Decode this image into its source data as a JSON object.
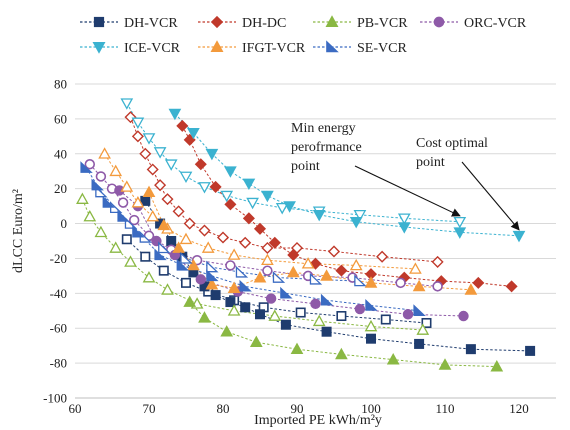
{
  "chart_data": {
    "type": "scatter",
    "xlabel": "Imported  PE kWh/m²y",
    "ylabel": "dLCC Euro/m²",
    "xlim": [
      60,
      125
    ],
    "ylim": [
      -100,
      80
    ],
    "x_ticks": [
      60,
      70,
      80,
      90,
      100,
      110,
      120
    ],
    "y_ticks": [
      80,
      60,
      40,
      20,
      0,
      -20,
      -40,
      -60,
      -80,
      -100
    ],
    "grid": "horizontal",
    "legend_position": "top",
    "annotations": [
      {
        "label": "Min energy\nperofrmance\npoint",
        "target": [
          112.0,
          1.0
        ]
      },
      {
        "label": "Cost optimal\npoint",
        "target": [
          120.0,
          -7.0
        ]
      }
    ],
    "series": [
      {
        "name": "DH-VCR",
        "color": "#1f3c6e",
        "marker": "square",
        "filled": [
          [
            69.5,
            13
          ],
          [
            71.5,
            0
          ],
          [
            73.0,
            -10
          ],
          [
            74.5,
            -19
          ],
          [
            76.0,
            -28
          ],
          [
            77.5,
            -36
          ],
          [
            79.0,
            -41
          ],
          [
            81.0,
            -45
          ],
          [
            83.0,
            -48
          ],
          [
            85.0,
            -52
          ],
          [
            88.5,
            -58
          ],
          [
            94.0,
            -62
          ],
          [
            100.0,
            -66
          ],
          [
            106.5,
            -69
          ],
          [
            113.5,
            -72
          ],
          [
            121.5,
            -73
          ]
        ],
        "hollow": [
          [
            67.0,
            -9
          ],
          [
            69.5,
            -19
          ],
          [
            72.0,
            -27
          ],
          [
            75.0,
            -34
          ],
          [
            78.0,
            -39
          ],
          [
            81.5,
            -44
          ],
          [
            85.5,
            -48
          ],
          [
            90.5,
            -51
          ],
          [
            96.0,
            -53
          ],
          [
            102.0,
            -55
          ],
          [
            107.5,
            -57
          ]
        ]
      },
      {
        "name": "DH-DC",
        "color": "#c0392b",
        "marker": "diamond",
        "filled": [
          [
            74.5,
            56
          ],
          [
            75.5,
            48
          ],
          [
            77.0,
            34
          ],
          [
            79.0,
            21
          ],
          [
            81.0,
            11
          ],
          [
            83.5,
            3
          ],
          [
            85.0,
            -3
          ],
          [
            87.0,
            -11
          ],
          [
            89.5,
            -18
          ],
          [
            92.5,
            -23
          ],
          [
            96.0,
            -27
          ],
          [
            100.0,
            -29
          ],
          [
            104.5,
            -31
          ],
          [
            109.5,
            -33
          ],
          [
            114.5,
            -34
          ],
          [
            119.0,
            -36
          ]
        ],
        "hollow": [
          [
            67.5,
            61
          ],
          [
            68.5,
            50
          ],
          [
            69.5,
            40
          ],
          [
            70.5,
            31
          ],
          [
            71.5,
            22
          ],
          [
            72.5,
            14
          ],
          [
            74.0,
            7
          ],
          [
            75.5,
            0
          ],
          [
            77.5,
            -4
          ],
          [
            80.0,
            -8
          ],
          [
            83.0,
            -11
          ],
          [
            86.0,
            -14
          ],
          [
            90.0,
            -14
          ],
          [
            95.0,
            -16
          ],
          [
            101.5,
            -19
          ],
          [
            109.0,
            -22
          ]
        ]
      },
      {
        "name": "PB-VCR",
        "color": "#8ab843",
        "marker": "triangle",
        "filled": [
          [
            75.5,
            -45
          ],
          [
            77.5,
            -54
          ],
          [
            80.5,
            -62
          ],
          [
            84.5,
            -68
          ],
          [
            90.0,
            -72
          ],
          [
            96.0,
            -75
          ],
          [
            103.0,
            -78
          ],
          [
            110.0,
            -81
          ],
          [
            117.0,
            -82
          ]
        ],
        "hollow": [
          [
            61.0,
            14
          ],
          [
            62.0,
            4
          ],
          [
            63.5,
            -5
          ],
          [
            65.5,
            -14
          ],
          [
            67.5,
            -22
          ],
          [
            70.0,
            -31
          ],
          [
            72.5,
            -38
          ],
          [
            76.5,
            -46
          ],
          [
            81.5,
            -50
          ],
          [
            87.0,
            -53
          ],
          [
            93.0,
            -56
          ],
          [
            100.0,
            -59
          ],
          [
            107.0,
            -61
          ]
        ]
      },
      {
        "name": "ORC-VCR",
        "color": "#8e5aa8",
        "marker": "circle",
        "filled": [
          [
            66.0,
            19
          ],
          [
            68.5,
            10
          ],
          [
            71.0,
            -10
          ],
          [
            73.5,
            -18
          ],
          [
            77.0,
            -32
          ],
          [
            82.0,
            -39
          ],
          [
            86.5,
            -43
          ],
          [
            92.5,
            -46
          ],
          [
            98.5,
            -49
          ],
          [
            105.0,
            -52
          ],
          [
            112.5,
            -53
          ]
        ],
        "hollow": [
          [
            62.0,
            34
          ],
          [
            63.5,
            27
          ],
          [
            65.0,
            20
          ],
          [
            66.5,
            12
          ],
          [
            68.0,
            2
          ],
          [
            70.0,
            -7
          ],
          [
            73.0,
            -15
          ],
          [
            76.5,
            -21
          ],
          [
            81.0,
            -24
          ],
          [
            86.0,
            -27
          ],
          [
            91.5,
            -30
          ],
          [
            97.5,
            -31
          ],
          [
            104.0,
            -34
          ],
          [
            109.0,
            -36
          ]
        ]
      },
      {
        "name": "ICE-VCR",
        "color": "#3bb2d0",
        "marker": "triangle-down",
        "filled": [
          [
            73.5,
            63
          ],
          [
            76.0,
            52
          ],
          [
            78.5,
            40
          ],
          [
            81.0,
            30
          ],
          [
            83.5,
            23
          ],
          [
            86.0,
            16
          ],
          [
            89.0,
            10
          ],
          [
            93.0,
            5
          ],
          [
            98.0,
            1
          ],
          [
            104.5,
            -2
          ],
          [
            112.0,
            -5
          ],
          [
            120.0,
            -7
          ]
        ],
        "hollow": [
          [
            67.0,
            69
          ],
          [
            68.5,
            58
          ],
          [
            70.0,
            49
          ],
          [
            71.5,
            41
          ],
          [
            73.0,
            34
          ],
          [
            75.0,
            27
          ],
          [
            77.5,
            21
          ],
          [
            80.5,
            16
          ],
          [
            84.0,
            12
          ],
          [
            88.0,
            9
          ],
          [
            93.0,
            7
          ],
          [
            98.5,
            5
          ],
          [
            104.5,
            3
          ],
          [
            112.0,
            1
          ]
        ]
      },
      {
        "name": "IFGT-VCR",
        "color": "#f39a3c",
        "marker": "triangle",
        "filled": [
          [
            70.0,
            18
          ],
          [
            72.0,
            -1
          ],
          [
            74.0,
            -14
          ],
          [
            76.0,
            -24
          ],
          [
            78.5,
            -35
          ],
          [
            81.5,
            -37
          ],
          [
            85.0,
            -31
          ],
          [
            89.5,
            -28
          ],
          [
            94.0,
            -30
          ],
          [
            100.0,
            -34
          ],
          [
            106.5,
            -36
          ],
          [
            113.5,
            -38
          ]
        ],
        "hollow": [
          [
            64.0,
            40
          ],
          [
            65.5,
            30
          ],
          [
            67.0,
            21
          ],
          [
            68.5,
            12
          ],
          [
            70.5,
            4
          ],
          [
            72.5,
            -3
          ],
          [
            75.0,
            -9
          ],
          [
            78.0,
            -14
          ],
          [
            81.5,
            -18
          ],
          [
            86.0,
            -21
          ],
          [
            91.5,
            -23
          ],
          [
            98.0,
            -24
          ],
          [
            106.0,
            -26
          ]
        ]
      },
      {
        "name": "SE-VCR",
        "color": "#3b6bc2",
        "marker": "flag",
        "filled": [
          [
            61.5,
            32
          ],
          [
            63.0,
            22
          ],
          [
            64.5,
            12
          ],
          [
            66.5,
            4
          ],
          [
            68.5,
            -5
          ],
          [
            71.5,
            -18
          ],
          [
            74.5,
            -24
          ],
          [
            78.5,
            -30
          ],
          [
            83.0,
            -36
          ],
          [
            88.5,
            -40
          ],
          [
            94.0,
            -44
          ],
          [
            100.0,
            -47
          ],
          [
            106.5,
            -50
          ]
        ],
        "hollow": [
          [
            63.5,
            18
          ],
          [
            65.5,
            9
          ],
          [
            67.5,
            0
          ],
          [
            69.5,
            -8
          ],
          [
            72.0,
            -14
          ],
          [
            75.0,
            -20
          ],
          [
            78.5,
            -25
          ],
          [
            82.5,
            -28
          ],
          [
            87.5,
            -31
          ],
          [
            92.5,
            -32
          ],
          [
            98.5,
            -33
          ]
        ]
      }
    ]
  }
}
